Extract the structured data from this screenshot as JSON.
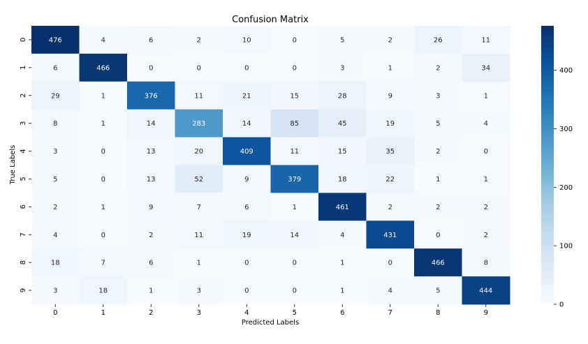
{
  "chart_data": {
    "type": "heatmap",
    "title": "Confusion Matrix",
    "xlabel": "Predicted Labels",
    "ylabel": "True Labels",
    "x_categories": [
      "0",
      "1",
      "2",
      "3",
      "4",
      "5",
      "6",
      "7",
      "8",
      "9"
    ],
    "y_categories": [
      "0",
      "1",
      "2",
      "3",
      "4",
      "5",
      "6",
      "7",
      "8",
      "9"
    ],
    "values": [
      [
        476,
        4,
        6,
        2,
        10,
        0,
        5,
        2,
        26,
        11
      ],
      [
        6,
        466,
        0,
        0,
        0,
        0,
        3,
        1,
        2,
        34
      ],
      [
        29,
        1,
        376,
        11,
        21,
        15,
        28,
        9,
        3,
        1
      ],
      [
        8,
        1,
        14,
        283,
        14,
        85,
        45,
        19,
        5,
        4
      ],
      [
        3,
        0,
        13,
        20,
        409,
        11,
        15,
        35,
        2,
        0
      ],
      [
        5,
        0,
        13,
        52,
        9,
        379,
        18,
        22,
        1,
        1
      ],
      [
        2,
        1,
        9,
        7,
        6,
        1,
        461,
        2,
        2,
        2
      ],
      [
        4,
        0,
        2,
        11,
        19,
        14,
        4,
        431,
        0,
        2
      ],
      [
        18,
        7,
        6,
        1,
        0,
        0,
        1,
        0,
        466,
        8
      ],
      [
        3,
        18,
        1,
        3,
        0,
        0,
        1,
        4,
        5,
        444
      ]
    ],
    "colormap": "Blues",
    "colorbar_ticks": [
      0,
      100,
      200,
      300,
      400
    ],
    "vmin": 0,
    "vmax": 476
  }
}
